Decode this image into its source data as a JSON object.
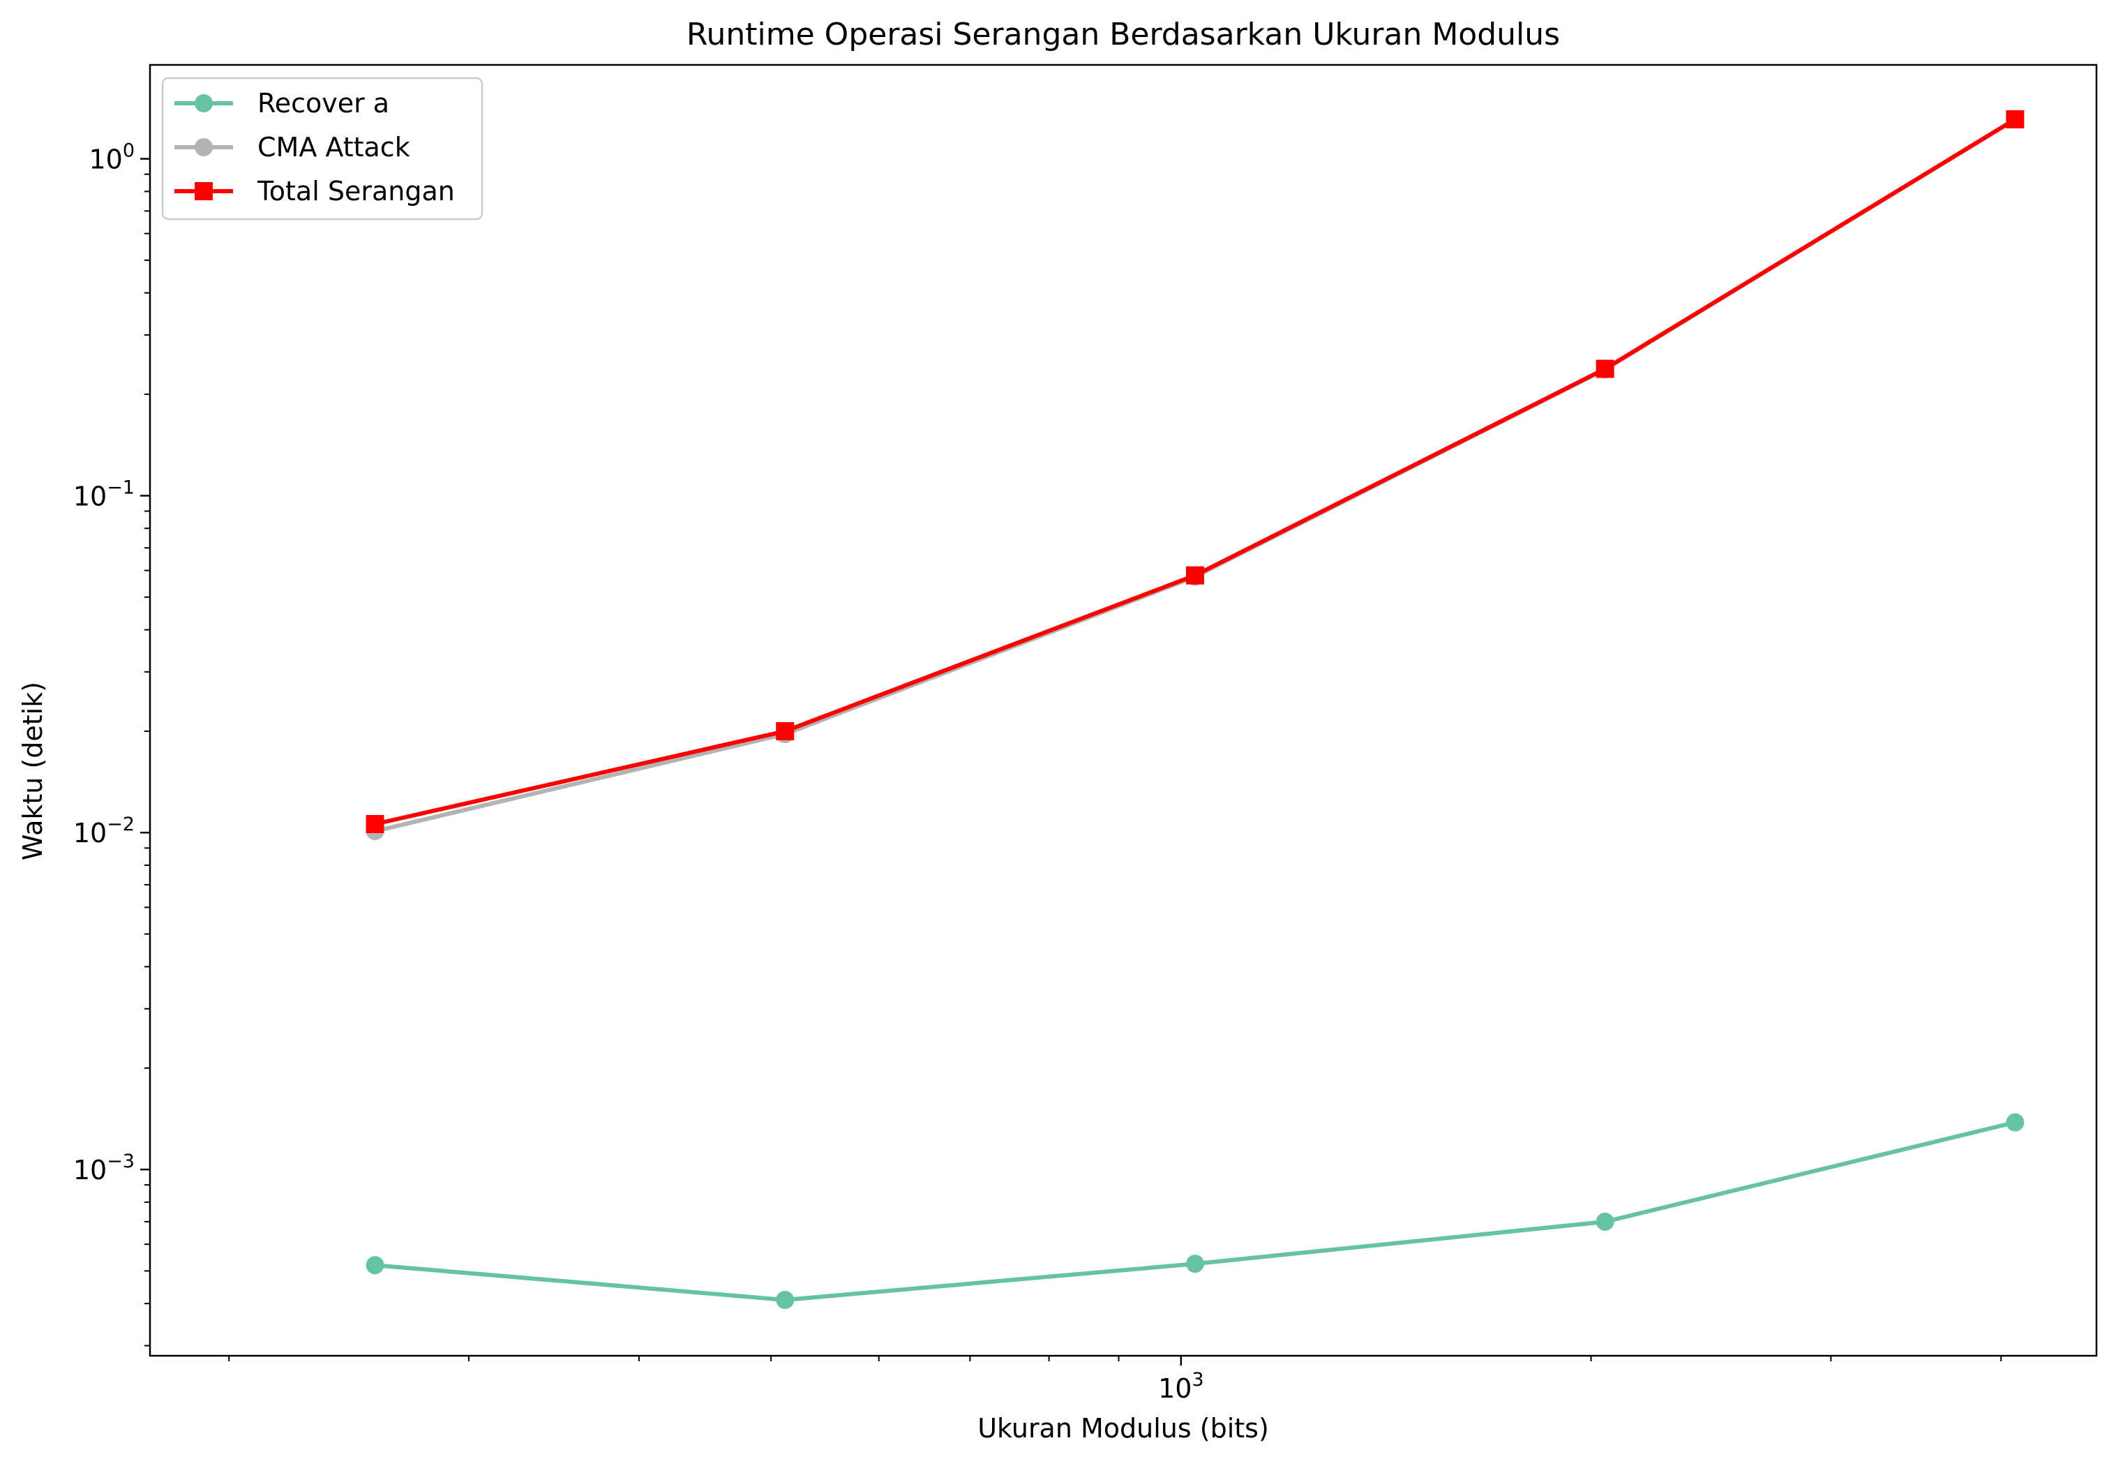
{
  "chart_data": {
    "type": "line",
    "title": "Runtime Operasi Serangan Berdasarkan Ukuran Modulus",
    "xlabel": "Ukuran Modulus (bits)",
    "ylabel": "Waktu (detik)",
    "xscale": "log",
    "yscale": "log",
    "xlim": [
      175,
      4700
    ],
    "ylim": [
      0.00028,
      1.9
    ],
    "x": [
      256,
      512,
      1024,
      2048,
      4096
    ],
    "xticks": [
      {
        "value": 1000,
        "base": "10",
        "exp": "3"
      }
    ],
    "yticks": [
      {
        "value": 1,
        "base": "10",
        "exp": "0"
      },
      {
        "value": 0.1,
        "base": "10",
        "exp": "−1"
      },
      {
        "value": 0.01,
        "base": "10",
        "exp": "−2"
      },
      {
        "value": 0.001,
        "base": "10",
        "exp": "−3"
      }
    ],
    "series": [
      {
        "name": "Recover a",
        "color": "#66c2a5",
        "marker": "circle",
        "values": [
          0.00052,
          0.00041,
          0.000525,
          0.0007,
          0.00138
        ]
      },
      {
        "name": "CMA Attack",
        "color": "#b3b3b3",
        "marker": "circle",
        "values": [
          0.0101,
          0.0196,
          0.0575,
          0.237,
          1.31
        ]
      },
      {
        "name": "Total Serangan",
        "color": "#ff0000",
        "marker": "square",
        "values": [
          0.0106,
          0.02,
          0.058,
          0.238,
          1.31
        ]
      }
    ],
    "legend": "upper-left",
    "grid": false
  }
}
